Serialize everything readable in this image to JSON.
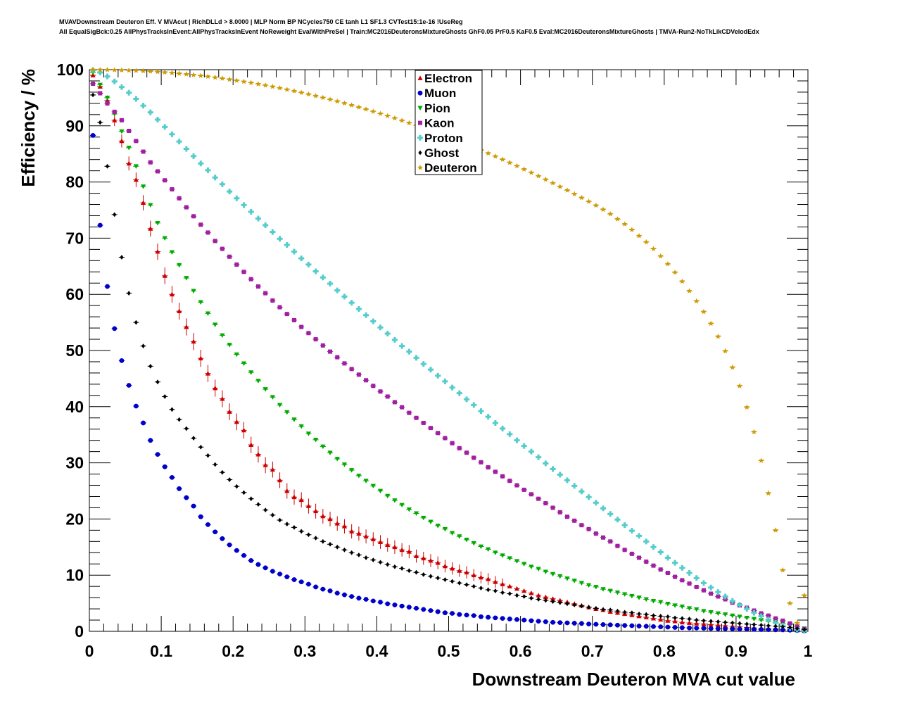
{
  "title_lines": [
    "MVAVDownstream Deuteron Eff. V MVAcut | RichDLLd > 8.0000 | MLP Norm BP NCycles750 CE tanh L1 SF1.3 CVTest15:1e-16 !UseReg",
    "All EqualSigBck:0.25 AllPhysTracksInEvent:AllPhysTracksInEvent NoReweight EvalWithPreSel | Train:MC2016DeuteronsMixtureGhosts GhF0.05 PrF0.5 KaF0.5 Eval:MC2016DeuteronsMixtureGhosts | TMVA-Run2-NoTkLikCDVelodEdx"
  ],
  "chart_data": {
    "type": "scatter",
    "xlabel": "Downstream Deuteron MVA cut value",
    "ylabel": "Efficiency / %",
    "xlim": [
      0,
      1
    ],
    "ylim": [
      0,
      100
    ],
    "xticks": [
      "0",
      "0.1",
      "0.2",
      "0.3",
      "0.4",
      "0.5",
      "0.6",
      "0.7",
      "0.8",
      "0.9",
      "1"
    ],
    "yticks": [
      "0",
      "10",
      "20",
      "30",
      "40",
      "50",
      "60",
      "70",
      "80",
      "90",
      "100"
    ],
    "legend_position": "top-center",
    "x": [
      0.005,
      0.015,
      0.025,
      0.035,
      0.045,
      0.055,
      0.065,
      0.075,
      0.085,
      0.095,
      0.105,
      0.115,
      0.125,
      0.135,
      0.145,
      0.155,
      0.165,
      0.175,
      0.185,
      0.195,
      0.205,
      0.215,
      0.225,
      0.235,
      0.245,
      0.255,
      0.265,
      0.275,
      0.285,
      0.295,
      0.305,
      0.315,
      0.325,
      0.335,
      0.345,
      0.355,
      0.365,
      0.375,
      0.385,
      0.395,
      0.405,
      0.415,
      0.425,
      0.435,
      0.445,
      0.455,
      0.465,
      0.475,
      0.485,
      0.495,
      0.505,
      0.515,
      0.525,
      0.535,
      0.545,
      0.555,
      0.565,
      0.575,
      0.585,
      0.595,
      0.605,
      0.615,
      0.625,
      0.635,
      0.645,
      0.655,
      0.665,
      0.675,
      0.685,
      0.695,
      0.705,
      0.715,
      0.725,
      0.735,
      0.745,
      0.755,
      0.765,
      0.775,
      0.785,
      0.795,
      0.805,
      0.815,
      0.825,
      0.835,
      0.845,
      0.855,
      0.865,
      0.875,
      0.885,
      0.895,
      0.905,
      0.915,
      0.925,
      0.935,
      0.945,
      0.955,
      0.965,
      0.975,
      0.985,
      0.995
    ],
    "series": [
      {
        "name": "Electron",
        "color": "#cc0000",
        "marker": "triangle-up",
        "values": [
          99,
          97,
          94.5,
          91,
          87.3,
          83.3,
          80.4,
          76.3,
          71.7,
          67.6,
          63.3,
          60,
          57,
          54.2,
          51.6,
          48.6,
          45.9,
          43.3,
          41.4,
          39.1,
          37.3,
          35.8,
          33.2,
          31.5,
          29.6,
          28.8,
          26.9,
          25,
          23.9,
          23.4,
          22.3,
          21.4,
          20.5,
          20,
          19.2,
          18.7,
          17.8,
          17.4,
          16.9,
          16.4,
          15.9,
          15.4,
          15,
          14.5,
          14.2,
          13.4,
          13,
          12.6,
          12.2,
          11.6,
          11.2,
          10.8,
          10.5,
          10,
          9.6,
          9.3,
          8.8,
          8.4,
          8,
          7.6,
          7.2,
          6.8,
          6.4,
          6.1,
          5.8,
          5.5,
          5.2,
          4.9,
          4.6,
          4.3,
          4,
          3.8,
          3.5,
          3.3,
          3.1,
          2.9,
          2.7,
          2.5,
          2.3,
          2.1,
          1.9,
          1.8,
          1.6,
          1.5,
          1.4,
          1.3,
          1.2,
          1.1,
          1,
          0.9,
          0.8,
          0.7,
          0.6,
          0.5,
          0.45,
          0.4,
          0.3,
          0.25,
          0.2,
          0.1
        ]
      },
      {
        "name": "Muon",
        "color": "#0000cc",
        "marker": "circle",
        "values": [
          88.3,
          72.3,
          61.4,
          53.9,
          48.2,
          43.8,
          40.1,
          37.1,
          34,
          31.5,
          29.3,
          27.4,
          25.4,
          23.8,
          22.3,
          20.4,
          19,
          17.7,
          16.5,
          15.4,
          14.4,
          13.5,
          12.6,
          11.9,
          11.3,
          10.7,
          10.2,
          9.7,
          9.2,
          8.8,
          8.4,
          7.9,
          7.5,
          7.2,
          6.8,
          6.5,
          6.2,
          5.9,
          5.7,
          5.4,
          5.2,
          4.9,
          4.7,
          4.5,
          4.3,
          4.1,
          3.9,
          3.7,
          3.5,
          3.3,
          3.2,
          3,
          2.9,
          2.8,
          2.6,
          2.5,
          2.4,
          2.3,
          2.2,
          2.1,
          2,
          1.9,
          1.8,
          1.7,
          1.6,
          1.55,
          1.5,
          1.45,
          1.4,
          1.3,
          1.25,
          1.2,
          1.15,
          1.1,
          1.05,
          1,
          0.95,
          0.9,
          0.85,
          0.8,
          0.75,
          0.7,
          0.65,
          0.6,
          0.58,
          0.55,
          0.5,
          0.48,
          0.45,
          0.42,
          0.4,
          0.38,
          0.35,
          0.32,
          0.3,
          0.27,
          0.25,
          0.2,
          0.15,
          0.1
        ]
      },
      {
        "name": "Pion",
        "color": "#00aa00",
        "marker": "triangle-down",
        "values": [
          99.5,
          97.3,
          95,
          92.1,
          89,
          86.1,
          82.8,
          79.2,
          75.9,
          72.7,
          70,
          67.5,
          65.2,
          62.9,
          60.6,
          58.6,
          56.6,
          54.6,
          52.7,
          51,
          49.3,
          47.7,
          46.1,
          44.6,
          43.1,
          41.7,
          40.3,
          39,
          37.7,
          36.5,
          35.2,
          34.1,
          32.9,
          31.8,
          30.7,
          29.7,
          28.7,
          27.7,
          26.8,
          25.9,
          25,
          24.1,
          23.3,
          22.5,
          21.7,
          21,
          20.2,
          19.5,
          18.8,
          18.2,
          17.5,
          16.9,
          16.3,
          15.7,
          15.1,
          14.6,
          14,
          13.5,
          13,
          12.5,
          12,
          11.5,
          11.1,
          10.6,
          10.2,
          9.8,
          9.4,
          9,
          8.6,
          8.2,
          7.9,
          7.5,
          7.2,
          6.9,
          6.6,
          6.3,
          6,
          5.7,
          5.4,
          5.2,
          4.9,
          4.6,
          4.4,
          4.1,
          3.9,
          3.6,
          3.4,
          3.2,
          3,
          2.8,
          2.6,
          2.4,
          2.2,
          2,
          1.8,
          1.6,
          1.4,
          1.2,
          0.9,
          0.5
        ]
      },
      {
        "name": "Kaon",
        "color": "#a020a0",
        "marker": "square",
        "values": [
          97.5,
          95.8,
          94,
          92.5,
          91,
          89.1,
          87.3,
          85.4,
          83.5,
          81.9,
          80.3,
          78.7,
          77.1,
          75.5,
          73.9,
          72.4,
          71,
          69.5,
          68.1,
          66.7,
          65.3,
          64,
          62.7,
          61.4,
          60.2,
          58.9,
          57.7,
          56.5,
          55.4,
          54.2,
          53.1,
          52,
          50.9,
          49.8,
          48.8,
          47.7,
          46.7,
          45.7,
          44.7,
          43.7,
          42.7,
          41.8,
          40.8,
          39.9,
          38.9,
          38,
          37.1,
          36.2,
          35.3,
          34.4,
          33.5,
          32.6,
          31.8,
          30.9,
          30.1,
          29.2,
          28.4,
          27.6,
          26.8,
          26,
          25.2,
          24.4,
          23.6,
          22.8,
          22,
          21.2,
          20.4,
          19.7,
          18.9,
          18.2,
          17.4,
          16.7,
          16,
          15.2,
          14.5,
          13.8,
          13.1,
          12.4,
          11.7,
          11,
          10.4,
          9.7,
          9.1,
          8.5,
          7.9,
          7.3,
          6.7,
          6.2,
          5.7,
          5.1,
          4.6,
          4.2,
          3.7,
          3.2,
          2.8,
          2.3,
          1.9,
          1.4,
          0.9,
          0.4
        ]
      },
      {
        "name": "Proton",
        "color": "#55cccc",
        "marker": "cross",
        "values": [
          99.9,
          99.5,
          98.8,
          97.9,
          96.9,
          95.9,
          94.8,
          93.6,
          92.4,
          91.1,
          89.8,
          88.5,
          87.2,
          85.9,
          84.6,
          83.3,
          82.1,
          80.8,
          79.6,
          78.3,
          77.1,
          75.9,
          74.7,
          73.5,
          72.3,
          71.1,
          69.9,
          68.8,
          67.6,
          66.4,
          65.3,
          64.1,
          63,
          61.9,
          60.7,
          59.6,
          58.5,
          57.4,
          56.3,
          55.2,
          54.1,
          53,
          51.9,
          50.8,
          49.8,
          48.7,
          47.6,
          46.6,
          45.5,
          44.5,
          43.4,
          42.4,
          41.3,
          40.3,
          39.2,
          38.2,
          37.1,
          36.1,
          35.1,
          34,
          33,
          32,
          31,
          29.9,
          28.9,
          27.9,
          26.9,
          25.9,
          24.9,
          23.9,
          22.9,
          21.9,
          20.9,
          19.9,
          18.9,
          17.9,
          17,
          16,
          15,
          14.1,
          13.1,
          12.2,
          11.3,
          10.4,
          9.5,
          8.6,
          7.8,
          7,
          6.2,
          5.4,
          4.7,
          4,
          3.3,
          2.7,
          2.1,
          1.5,
          1,
          0.6,
          0.3,
          0.1
        ]
      },
      {
        "name": "Ghost",
        "color": "#000000",
        "marker": "diamond",
        "values": [
          95.5,
          90.6,
          82.8,
          74.2,
          66.6,
          60.2,
          55,
          50.8,
          47.2,
          44.4,
          41.8,
          39.5,
          37.7,
          36.1,
          34.4,
          32.8,
          31.3,
          29.7,
          28.3,
          27,
          25.8,
          24.7,
          23.6,
          22.6,
          21.6,
          20.7,
          19.8,
          19.1,
          18.5,
          17.8,
          17.2,
          16.6,
          16,
          15.5,
          15,
          14.5,
          14,
          13.6,
          13.1,
          12.7,
          12.3,
          11.9,
          11.5,
          11.2,
          10.8,
          10.5,
          10.1,
          9.8,
          9.5,
          9.2,
          8.9,
          8.6,
          8.3,
          8,
          7.7,
          7.4,
          7.2,
          6.9,
          6.7,
          6.4,
          6.2,
          5.9,
          5.7,
          5.5,
          5.3,
          5.1,
          4.9,
          4.7,
          4.5,
          4.3,
          4.1,
          3.9,
          3.8,
          3.6,
          3.4,
          3.3,
          3.1,
          3,
          2.8,
          2.7,
          2.6,
          2.4,
          2.3,
          2.2,
          2,
          1.9,
          1.8,
          1.7,
          1.6,
          1.5,
          1.4,
          1.3,
          1.2,
          1.1,
          1,
          0.9,
          0.8,
          0.7,
          0.5,
          0.3
        ]
      },
      {
        "name": "Deuteron",
        "color": "#cc9900",
        "marker": "star",
        "values": [
          100,
          99.99,
          99.97,
          99.95,
          99.92,
          99.88,
          99.83,
          99.77,
          99.7,
          99.62,
          99.53,
          99.43,
          99.32,
          99.2,
          99.07,
          98.93,
          98.78,
          98.62,
          98.45,
          98.27,
          98.08,
          97.88,
          97.67,
          97.45,
          97.22,
          96.98,
          96.73,
          96.47,
          96.2,
          95.92,
          95.63,
          95.33,
          95.02,
          94.7,
          94.37,
          94.03,
          93.68,
          93.32,
          92.95,
          92.57,
          92.18,
          91.78,
          91.37,
          90.95,
          90.52,
          90.08,
          89.63,
          89.17,
          88.7,
          88.22,
          87.73,
          87.23,
          86.72,
          86.2,
          85.67,
          85.13,
          84.58,
          84.02,
          83.45,
          82.87,
          82.28,
          81.68,
          81.07,
          80.45,
          79.82,
          79.18,
          78.53,
          77.87,
          77.2,
          76.52,
          75.83,
          75.1,
          74.3,
          73.4,
          72.5,
          71.5,
          70.4,
          69.3,
          68.1,
          66.8,
          65.4,
          63.9,
          62.3,
          60.6,
          58.8,
          56.9,
          54.8,
          52.5,
          49.9,
          47,
          43.7,
          39.9,
          35.5,
          30.4,
          24.6,
          18,
          10.9,
          5,
          1.5,
          6.4
        ]
      }
    ]
  }
}
